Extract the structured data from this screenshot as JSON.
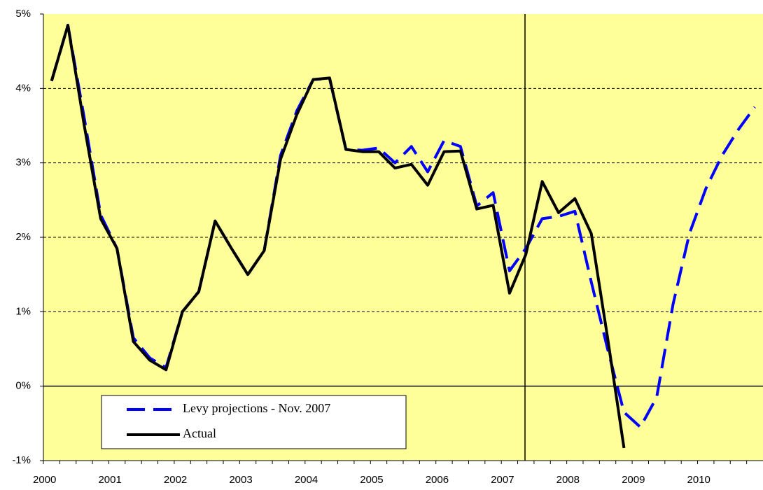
{
  "chart_data": {
    "type": "line",
    "categories": [
      "2000",
      null,
      null,
      null,
      "2001",
      null,
      null,
      null,
      "2002",
      null,
      null,
      null,
      "2003",
      null,
      null,
      null,
      "2004",
      null,
      null,
      null,
      "2005",
      null,
      null,
      null,
      "2006",
      null,
      null,
      null,
      "2007",
      null,
      null,
      null,
      "2008",
      null,
      null,
      null,
      "2009",
      null,
      null,
      null,
      "2010",
      null,
      null,
      null
    ],
    "series": [
      {
        "name": "Levy projections - Nov. 2007",
        "color": "#0000ff",
        "dashed": true,
        "values": [
          4.1,
          4.85,
          3.6,
          2.3,
          1.85,
          0.65,
          0.38,
          0.25,
          1.0,
          1.27,
          2.22,
          1.85,
          1.5,
          1.82,
          3.1,
          3.7,
          4.12,
          4.13,
          3.18,
          3.17,
          3.2,
          3.0,
          3.22,
          2.88,
          3.3,
          3.22,
          2.42,
          2.6,
          1.55,
          1.85,
          2.25,
          2.28,
          2.35,
          1.4,
          0.5,
          -0.35,
          -0.55,
          -0.15,
          1.1,
          2.05,
          2.65,
          3.1,
          3.45,
          3.75
        ]
      },
      {
        "name": "Actual",
        "color": "#000000",
        "dashed": false,
        "values": [
          4.1,
          4.85,
          3.5,
          2.25,
          1.85,
          0.6,
          0.35,
          0.22,
          1.0,
          1.27,
          2.22,
          1.85,
          1.5,
          1.82,
          3.05,
          3.65,
          4.12,
          4.14,
          3.18,
          3.15,
          3.15,
          2.93,
          2.98,
          2.7,
          3.15,
          3.16,
          2.38,
          2.43,
          1.25,
          1.77,
          2.75,
          2.33,
          2.52,
          2.05,
          0.65,
          -0.83,
          null,
          null,
          null,
          null,
          null,
          null,
          null,
          null
        ]
      }
    ],
    "ylim": [
      -1,
      5
    ],
    "yticks": [
      {
        "value": -1,
        "label": "-1%"
      },
      {
        "value": 0,
        "label": "0%"
      },
      {
        "value": 1,
        "label": "1%"
      },
      {
        "value": 2,
        "label": "2%"
      },
      {
        "value": 3,
        "label": "3%"
      },
      {
        "value": 4,
        "label": "4%"
      },
      {
        "value": 5,
        "label": "5%"
      }
    ],
    "grid": true,
    "legend": "bottom-left"
  }
}
